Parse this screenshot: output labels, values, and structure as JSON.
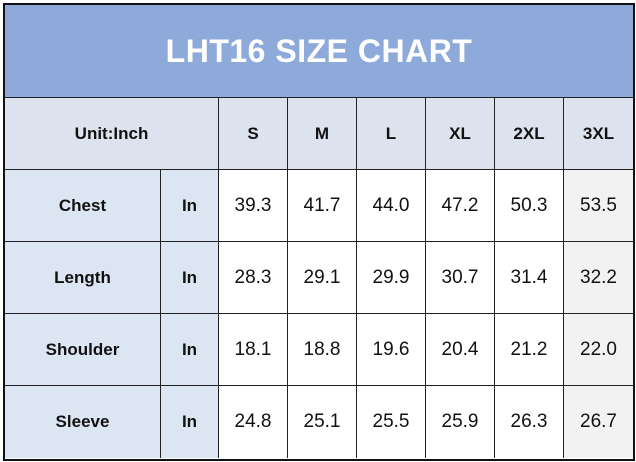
{
  "header": {
    "title": "LHT16 SIZE CHART"
  },
  "table": {
    "unit_label": "Unit:Inch",
    "columns": [
      "S",
      "M",
      "L",
      "XL",
      "2XL",
      "3XL"
    ],
    "rows": [
      {
        "label": "Chest",
        "unit": "In",
        "values": [
          "39.3",
          "41.7",
          "44.0",
          "47.2",
          "50.3",
          "53.5"
        ]
      },
      {
        "label": "Length",
        "unit": "In",
        "values": [
          "28.3",
          "29.1",
          "29.9",
          "30.7",
          "31.4",
          "32.2"
        ]
      },
      {
        "label": "Shoulder",
        "unit": "In",
        "values": [
          "18.1",
          "18.8",
          "19.6",
          "20.4",
          "21.2",
          "22.0"
        ]
      },
      {
        "label": "Sleeve",
        "unit": "In",
        "values": [
          "24.8",
          "25.1",
          "25.5",
          "25.9",
          "26.3",
          "26.7"
        ]
      }
    ]
  }
}
